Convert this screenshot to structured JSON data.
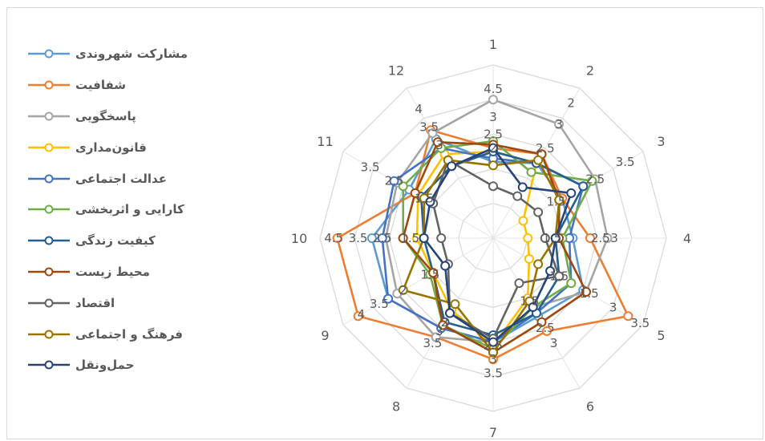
{
  "chart_data": {
    "type": "radar",
    "categories": [
      "1",
      "2",
      "3",
      "4",
      "5",
      "6",
      "7",
      "8",
      "9",
      "10",
      "11",
      "12"
    ],
    "radial_range": [
      0,
      5
    ],
    "radial_ticks": [
      "1",
      "1.5",
      "2",
      "2.5",
      "3",
      "3.5",
      "4",
      "4.5",
      "5"
    ],
    "grid": true,
    "legend_position": "left",
    "series": [
      {
        "name": "مشارکت شهروندی",
        "color": "#5b9bd5",
        "values": [
          2.2,
          2.5,
          2.3,
          2.3,
          3.0,
          2.6,
          3.0,
          3.0,
          3.5,
          3.5,
          2.8,
          3.3
        ]
      },
      {
        "name": "شفافیت",
        "color": "#ed7d31",
        "values": [
          2.6,
          2.8,
          2.3,
          2.8,
          4.5,
          3.1,
          3.5,
          3.3,
          4.5,
          4.5,
          2.6,
          3.6
        ]
      },
      {
        "name": "پاسخگویی",
        "color": "#a5a5a5",
        "values": [
          4.0,
          3.8,
          3.4,
          3.3,
          3.1,
          2.3,
          3.0,
          3.3,
          3.2,
          3.1,
          3.2,
          3.5
        ]
      },
      {
        "name": "قانون‌مداری",
        "color": "#ffc000",
        "values": [
          2.5,
          2.5,
          1.0,
          1.0,
          1.2,
          2.0,
          3.1,
          2.4,
          2.0,
          2.2,
          2.5,
          2.8
        ]
      },
      {
        "name": "عدالت اجتماعی",
        "color": "#4472c4",
        "values": [
          2.3,
          2.5,
          3.0,
          2.2,
          2.6,
          2.5,
          3.0,
          3.0,
          3.5,
          3.2,
          3.3,
          3.0
        ]
      },
      {
        "name": "کارایی و اثربخشی",
        "color": "#70ad47",
        "values": [
          2.8,
          2.2,
          3.3,
          2.0,
          2.6,
          2.3,
          3.2,
          2.9,
          2.1,
          2.6,
          3.0,
          3.0
        ]
      },
      {
        "name": "کیفیت زندگی",
        "color": "#255e91",
        "values": [
          2.5,
          2.5,
          3.0,
          1.8,
          2.2,
          2.5,
          2.8,
          2.8,
          2.0,
          2.0,
          2.4,
          2.4
        ]
      },
      {
        "name": "محیط زیست",
        "color": "#9e480e",
        "values": [
          2.7,
          2.8,
          2.2,
          1.9,
          3.1,
          2.8,
          3.3,
          2.9,
          2.0,
          2.6,
          2.6,
          3.2
        ]
      },
      {
        "name": "اقتصاد",
        "color": "#636363",
        "values": [
          1.5,
          1.4,
          1.5,
          1.5,
          2.2,
          1.5,
          2.9,
          2.5,
          1.5,
          1.5,
          2.0,
          2.6
        ]
      },
      {
        "name": "فرهنگ و اجتماعی",
        "color": "#997300",
        "values": [
          2.1,
          2.6,
          2.2,
          1.8,
          1.5,
          2.1,
          3.3,
          2.2,
          3.0,
          2.0,
          2.3,
          2.6
        ]
      },
      {
        "name": "حمل‌ونقل",
        "color": "#264478",
        "values": [
          2.6,
          1.7,
          2.6,
          1.8,
          1.9,
          2.3,
          3.0,
          2.5,
          1.6,
          2.0,
          2.1,
          2.4
        ]
      }
    ],
    "data_labels": [
      {
        "cat": "1",
        "r": 4.3,
        "text": "4.5"
      },
      {
        "cat": "1",
        "r": 3.5,
        "text": "3"
      },
      {
        "cat": "1",
        "r": 3.0,
        "text": "2.5"
      },
      {
        "cat": "1",
        "r": 2.6,
        "text": "2"
      },
      {
        "cat": "2",
        "r": 4.5,
        "text": "2"
      },
      {
        "cat": "2",
        "r": 3.8,
        "text": "3"
      },
      {
        "cat": "2",
        "r": 3.0,
        "text": "2.5"
      },
      {
        "cat": "3",
        "r": 4.4,
        "text": "3.5"
      },
      {
        "cat": "3",
        "r": 3.4,
        "text": "2.5"
      },
      {
        "cat": "3",
        "r": 2.1,
        "text": "1.5"
      },
      {
        "cat": "4",
        "r": 3.1,
        "text": "2.5"
      },
      {
        "cat": "4",
        "r": 3.5,
        "text": "3"
      },
      {
        "cat": "4",
        "r": 1.7,
        "text": "1.5"
      },
      {
        "cat": "5",
        "r": 4.9,
        "text": "3.5"
      },
      {
        "cat": "5",
        "r": 4.0,
        "text": "3"
      },
      {
        "cat": "5",
        "r": 3.2,
        "text": "1.5"
      },
      {
        "cat": "5",
        "r": 2.2,
        "text": "1.5"
      },
      {
        "cat": "6",
        "r": 3.5,
        "text": "3"
      },
      {
        "cat": "6",
        "r": 3.0,
        "text": "2.5"
      },
      {
        "cat": "6",
        "r": 2.1,
        "text": "1.5"
      },
      {
        "cat": "7",
        "r": 3.9,
        "text": "3.5"
      },
      {
        "cat": "7",
        "r": 3.5,
        "text": "3"
      },
      {
        "cat": "7",
        "r": 3.1,
        "text": "2.5"
      },
      {
        "cat": "8",
        "r": 3.5,
        "text": "3.5"
      },
      {
        "cat": "8",
        "r": 3.1,
        "text": "3"
      },
      {
        "cat": "8",
        "r": 2.8,
        "text": "2"
      },
      {
        "cat": "9",
        "r": 4.4,
        "text": "4"
      },
      {
        "cat": "9",
        "r": 3.8,
        "text": "3.5"
      },
      {
        "cat": "9",
        "r": 3.0,
        "text": "2"
      },
      {
        "cat": "9",
        "r": 2.1,
        "text": "1.5"
      },
      {
        "cat": "10",
        "r": 4.6,
        "text": "4.5"
      },
      {
        "cat": "10",
        "r": 3.9,
        "text": "3.5"
      },
      {
        "cat": "10",
        "r": 3.2,
        "text": "2.5"
      },
      {
        "cat": "10",
        "r": 2.4,
        "text": "1.5"
      },
      {
        "cat": "11",
        "r": 4.1,
        "text": "3.5"
      },
      {
        "cat": "11",
        "r": 3.3,
        "text": "2.5"
      },
      {
        "cat": "11",
        "r": 2.3,
        "text": "1.5"
      },
      {
        "cat": "12",
        "r": 4.3,
        "text": "4"
      },
      {
        "cat": "12",
        "r": 3.7,
        "text": "3.5"
      },
      {
        "cat": "12",
        "r": 3.1,
        "text": "3"
      }
    ]
  }
}
